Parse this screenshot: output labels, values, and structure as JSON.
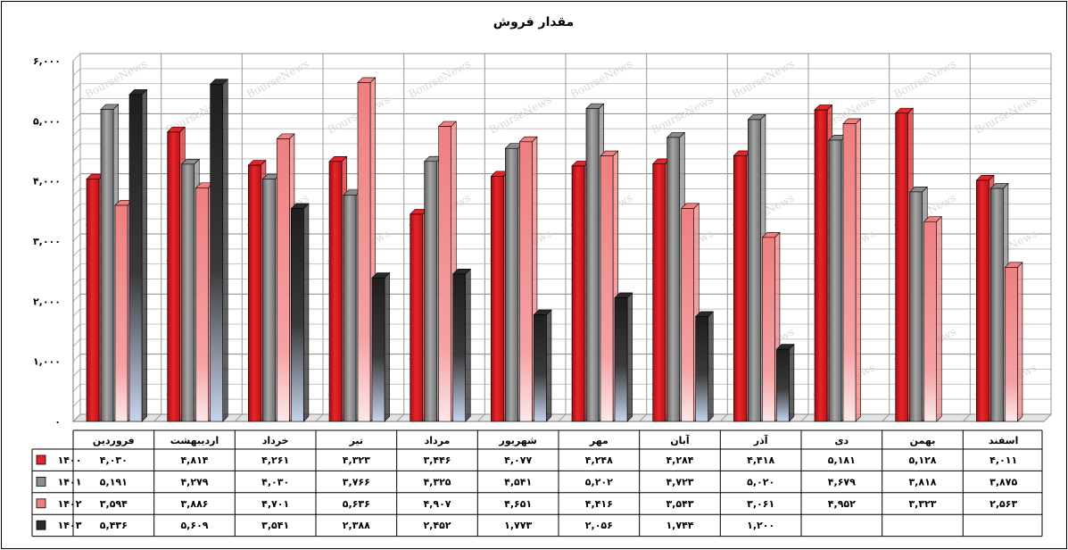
{
  "chart_data": {
    "type": "bar",
    "title": "مقدار فروش",
    "xlabel": "",
    "ylabel": "",
    "ylim": [
      0,
      6000
    ],
    "y_ticks": [
      0,
      1000,
      2000,
      3000,
      4000,
      5000,
      6000
    ],
    "y_tick_labels": [
      "۰",
      "۱,۰۰۰",
      "۲,۰۰۰",
      "۳,۰۰۰",
      "۴,۰۰۰",
      "۵,۰۰۰",
      "۶,۰۰۰"
    ],
    "grid": true,
    "legend": "data-table-left",
    "watermark": "BourseNews",
    "categories": [
      "فروردین",
      "اردیبهشت",
      "خرداد",
      "تیر",
      "مرداد",
      "شهریور",
      "مهر",
      "آبان",
      "آذر",
      "دی",
      "بهمن",
      "اسفند"
    ],
    "series": [
      {
        "name": "۱۴۰۰",
        "color": "#e0262a",
        "values": [
          4030,
          4814,
          4261,
          4323,
          3446,
          4077,
          4248,
          4284,
          4418,
          5181,
          5128,
          4011
        ],
        "labels": [
          "۴,۰۳۰",
          "۴,۸۱۴",
          "۴,۲۶۱",
          "۴,۳۲۳",
          "۳,۴۴۶",
          "۴,۰۷۷",
          "۴,۲۴۸",
          "۴,۲۸۴",
          "۴,۴۱۸",
          "۵,۱۸۱",
          "۵,۱۲۸",
          "۴,۰۱۱"
        ]
      },
      {
        "name": "۱۴۰۱",
        "color": "#8c8c8c",
        "values": [
          5191,
          4279,
          4030,
          3766,
          4325,
          4541,
          5202,
          4723,
          5020,
          4679,
          3818,
          3875
        ],
        "labels": [
          "۵,۱۹۱",
          "۴,۲۷۹",
          "۴,۰۳۰",
          "۳,۷۶۶",
          "۴,۳۲۵",
          "۴,۵۴۱",
          "۵,۲۰۲",
          "۴,۷۲۳",
          "۵,۰۲۰",
          "۴,۶۷۹",
          "۳,۸۱۸",
          "۳,۸۷۵"
        ]
      },
      {
        "name": "۱۴۰۲",
        "color": "#f08080",
        "values": [
          3594,
          3886,
          4701,
          5636,
          4907,
          4651,
          4416,
          3543,
          3061,
          4952,
          3323,
          2563
        ],
        "labels": [
          "۳,۵۹۴",
          "۳,۸۸۶",
          "۴,۷۰۱",
          "۵,۶۳۶",
          "۴,۹۰۷",
          "۴,۶۵۱",
          "۴,۴۱۶",
          "۳,۵۴۳",
          "۳,۰۶۱",
          "۴,۹۵۲",
          "۳,۳۲۳",
          "۲,۵۶۳"
        ]
      },
      {
        "name": "۱۴۰۳",
        "color": "#2a2a2a",
        "values": [
          5436,
          5609,
          3541,
          2388,
          2452,
          1773,
          2056,
          1744,
          1200,
          null,
          null,
          null
        ],
        "labels": [
          "۵,۴۳۶",
          "۵,۶۰۹",
          "۳,۵۴۱",
          "۲,۳۸۸",
          "۲,۴۵۲",
          "۱,۷۷۳",
          "۲,۰۵۶",
          "۱,۷۴۴",
          "۱,۲۰۰",
          "",
          "",
          ""
        ]
      }
    ]
  }
}
